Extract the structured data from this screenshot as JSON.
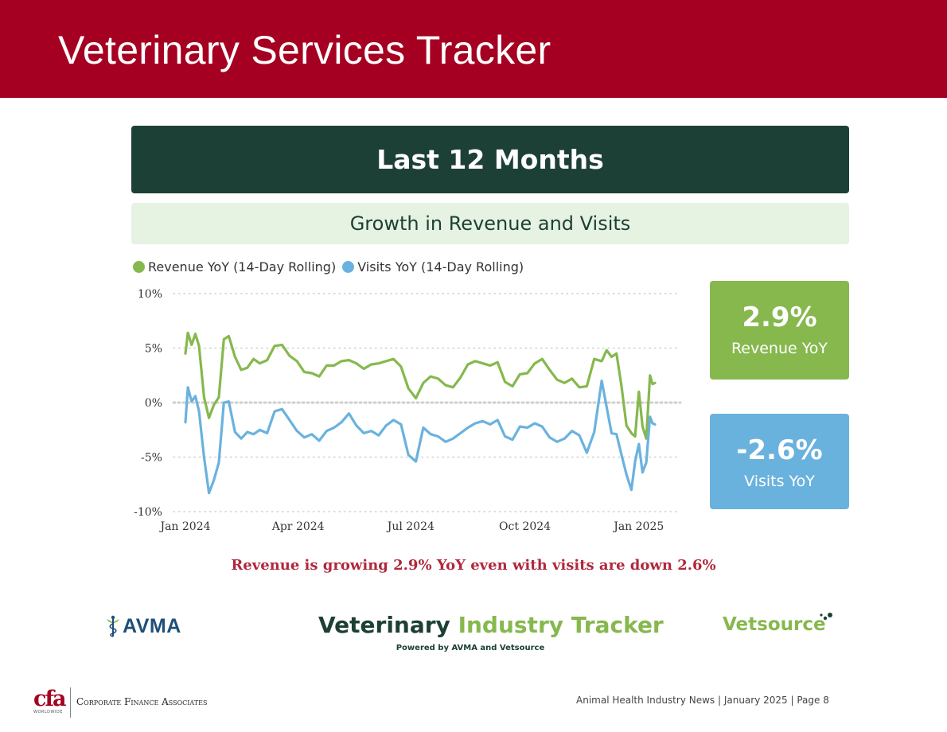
{
  "header": {
    "title": "Veterinary Services Tracker"
  },
  "section": {
    "title": "Last 12 Months",
    "subtitle": "Growth in Revenue and Visits"
  },
  "colors": {
    "banner": "#a50021",
    "section_bg": "#1d4036",
    "subtitle_bg": "#e6f2e2",
    "revenue": "#86b84e",
    "visits": "#6ab2de",
    "caption": "#b0283c"
  },
  "kpis": {
    "revenue": {
      "value": "2.9%",
      "label": "Revenue YoY"
    },
    "visits": {
      "value": "-2.6%",
      "label": "Visits YoY"
    }
  },
  "caption": "Revenue is growing 2.9% YoY even with visits are down 2.6%",
  "chart_data": {
    "type": "line",
    "legend_placement": "top-left",
    "grid": "horizontal dotted",
    "ylim": [
      -10,
      10
    ],
    "xlim": [
      "2024-01-01",
      "2025-01-14"
    ],
    "y_ticks": [
      {
        "value": 10,
        "label": "10%"
      },
      {
        "value": 5,
        "label": "5%"
      },
      {
        "value": 0,
        "label": "0%"
      },
      {
        "value": -5,
        "label": "-5%"
      },
      {
        "value": -10,
        "label": "-10%"
      }
    ],
    "x_ticks": [
      {
        "date": "2024-01-01",
        "label": "Jan 2024"
      },
      {
        "date": "2024-04-01",
        "label": "Apr 2024"
      },
      {
        "date": "2024-07-01",
        "label": "Jul 2024"
      },
      {
        "date": "2024-10-01",
        "label": "Oct 2024"
      },
      {
        "date": "2025-01-01",
        "label": "Jan 2025"
      }
    ],
    "x": [
      "2024-01-01",
      "2024-01-03",
      "2024-01-06",
      "2024-01-09",
      "2024-01-12",
      "2024-01-16",
      "2024-01-20",
      "2024-01-24",
      "2024-01-28",
      "2024-02-01",
      "2024-02-05",
      "2024-02-10",
      "2024-02-15",
      "2024-02-20",
      "2024-02-25",
      "2024-03-01",
      "2024-03-07",
      "2024-03-13",
      "2024-03-19",
      "2024-03-25",
      "2024-03-31",
      "2024-04-06",
      "2024-04-12",
      "2024-04-18",
      "2024-04-24",
      "2024-04-30",
      "2024-05-06",
      "2024-05-12",
      "2024-05-18",
      "2024-05-24",
      "2024-05-30",
      "2024-06-05",
      "2024-06-11",
      "2024-06-17",
      "2024-06-23",
      "2024-06-29",
      "2024-07-05",
      "2024-07-11",
      "2024-07-17",
      "2024-07-23",
      "2024-07-29",
      "2024-08-04",
      "2024-08-10",
      "2024-08-16",
      "2024-08-22",
      "2024-08-28",
      "2024-09-03",
      "2024-09-09",
      "2024-09-15",
      "2024-09-21",
      "2024-09-27",
      "2024-10-03",
      "2024-10-09",
      "2024-10-15",
      "2024-10-21",
      "2024-10-27",
      "2024-11-02",
      "2024-11-08",
      "2024-11-14",
      "2024-11-20",
      "2024-11-26",
      "2024-12-02",
      "2024-12-06",
      "2024-12-10",
      "2024-12-14",
      "2024-12-18",
      "2024-12-22",
      "2024-12-26",
      "2024-12-29",
      "2025-01-01",
      "2025-01-04",
      "2025-01-07",
      "2025-01-10",
      "2025-01-12",
      "2025-01-14"
    ],
    "series": [
      {
        "name": "Revenue YoY (14-Day Rolling)",
        "color": "#86b84e",
        "values": [
          4.5,
          6.4,
          5.3,
          6.3,
          5.2,
          0.5,
          -1.4,
          -0.2,
          0.5,
          5.8,
          6.1,
          4.2,
          3.0,
          3.2,
          4.0,
          3.6,
          3.9,
          5.2,
          5.3,
          4.3,
          3.8,
          2.8,
          2.7,
          2.4,
          3.4,
          3.4,
          3.8,
          3.9,
          3.6,
          3.1,
          3.5,
          3.6,
          3.8,
          4.0,
          3.3,
          1.3,
          0.4,
          1.8,
          2.4,
          2.2,
          1.6,
          1.4,
          2.3,
          3.5,
          3.8,
          3.6,
          3.4,
          3.7,
          1.9,
          1.5,
          2.6,
          2.7,
          3.6,
          4.0,
          3.0,
          2.1,
          1.8,
          2.2,
          1.4,
          1.5,
          4.0,
          3.8,
          4.8,
          4.2,
          4.5,
          1.5,
          -2.1,
          -2.8,
          -3.1,
          1.0,
          -2.2,
          -3.3,
          2.5,
          1.7,
          1.8
        ]
      },
      {
        "name": "Visits YoY (14-Day Rolling)",
        "color": "#6ab2de",
        "values": [
          -1.8,
          1.4,
          0.1,
          0.6,
          -0.8,
          -5.0,
          -8.3,
          -7.1,
          -5.5,
          0.0,
          0.1,
          -2.7,
          -3.3,
          -2.7,
          -2.9,
          -2.5,
          -2.8,
          -0.8,
          -0.6,
          -1.6,
          -2.6,
          -3.2,
          -2.9,
          -3.5,
          -2.6,
          -2.3,
          -1.8,
          -1.0,
          -2.1,
          -2.8,
          -2.6,
          -3.0,
          -2.1,
          -1.6,
          -2.0,
          -4.8,
          -5.4,
          -2.3,
          -2.9,
          -3.1,
          -3.6,
          -3.3,
          -2.8,
          -2.3,
          -1.9,
          -1.7,
          -2.0,
          -1.6,
          -3.1,
          -3.4,
          -2.2,
          -2.3,
          -1.9,
          -2.2,
          -3.2,
          -3.6,
          -3.3,
          -2.6,
          -3.0,
          -4.6,
          -2.7,
          2.0,
          -0.4,
          -2.8,
          -2.9,
          -4.8,
          -6.6,
          -8.0,
          -5.4,
          -3.8,
          -6.4,
          -5.5,
          -1.3,
          -1.9,
          -2.0
        ]
      }
    ]
  },
  "logos": {
    "avma": "AVMA",
    "tracker_dark": "Veterinary",
    "tracker_green": "Industry Tracker",
    "tracker_sub": "Powered by AVMA and Vetsource",
    "vetsource": "Vetsource",
    "cfa_letters": "cfa",
    "cfa_world": "WORLDWIDE",
    "cfa_name": "Corporate Finance Associates"
  },
  "footer": {
    "note": "Animal Health Industry News | January 2025 | Page 8"
  }
}
